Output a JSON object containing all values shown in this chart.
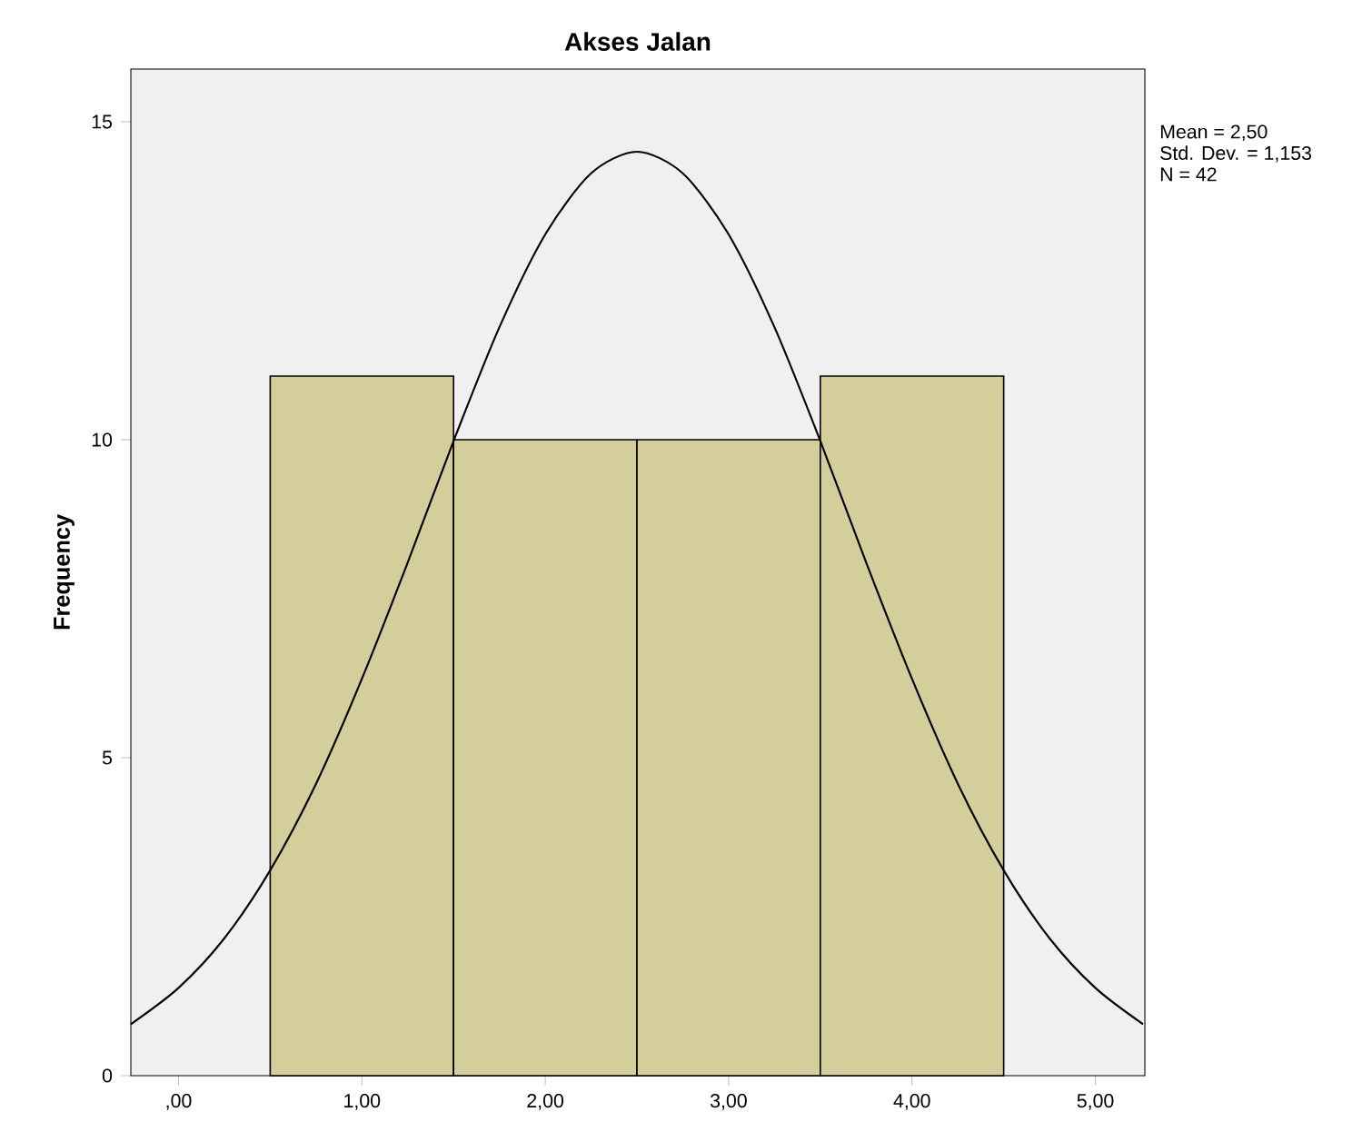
{
  "chart_data": {
    "type": "histogram",
    "title": "Akses Jalan",
    "ylabel": "Frequency",
    "bins": [
      0.5,
      1.5,
      2.5,
      3.5,
      4.5
    ],
    "values": [
      11,
      10,
      10,
      11
    ],
    "color": "#d3ce9a",
    "series": [
      {
        "type": "line",
        "color": "#000000",
        "x": [
          -0.26,
          0,
          0.25,
          0.5,
          0.75,
          1,
          1.25,
          1.5,
          1.75,
          2,
          2.25,
          2.5,
          2.75,
          3,
          3.25,
          3.5,
          3.75,
          4,
          4.25,
          4.5,
          4.75,
          5,
          5.26
        ],
        "values": [
          0.81,
          1.38,
          2.16,
          3.23,
          4.59,
          6.24,
          8.07,
          9.98,
          11.77,
          13.23,
          14.19,
          14.53,
          14.19,
          13.23,
          11.77,
          9.98,
          8.07,
          6.24,
          4.59,
          3.23,
          2.16,
          1.38,
          0.81
        ]
      }
    ],
    "xlim": [
      -0.26,
      5.27
    ],
    "ylim": [
      0,
      15.83
    ],
    "xticks": [
      {
        "value": 0,
        "label": ",00"
      },
      {
        "value": 1,
        "label": "1,00"
      },
      {
        "value": 2,
        "label": "2,00"
      },
      {
        "value": 3,
        "label": "3,00"
      },
      {
        "value": 4,
        "label": "4,00"
      },
      {
        "value": 5,
        "label": "5,00"
      }
    ],
    "yticks": [
      0,
      5,
      10,
      15
    ],
    "annotations": [
      "Mean = 2,50",
      "Std. Dev. = 1,153",
      "N = 42"
    ]
  }
}
